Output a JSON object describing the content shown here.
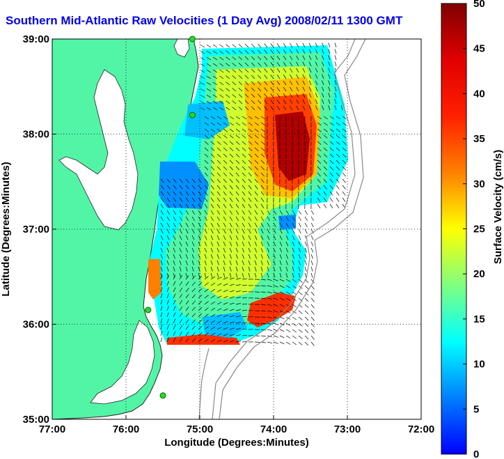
{
  "title": "Southern Mid-Atlantic Raw Velocities (1 Day Avg) 2008/02/11 1300 GMT",
  "chart_data": {
    "type": "heatmap",
    "title": "Southern Mid-Atlantic Raw Velocities (1 Day Avg) 2008/02/11 1300 GMT",
    "xlabel": "Longitude (Degrees:Minutes)",
    "ylabel": "Latitude (Degrees:Minutes)",
    "x_ticks": [
      "77:00",
      "76:00",
      "75:00",
      "74:00",
      "73:00",
      "72:00"
    ],
    "y_ticks": [
      "39:00",
      "38:00",
      "37:00",
      "36:00",
      "35:00"
    ],
    "xlim": [
      -77,
      -72
    ],
    "ylim": [
      35,
      39
    ],
    "grid": "dotted",
    "colorbar": {
      "label": "Surface Velocity (cm/s)",
      "range": [
        0,
        50
      ],
      "ticks": [
        "0",
        "5",
        "10",
        "15",
        "20",
        "25",
        "30",
        "35",
        "40",
        "45",
        "50"
      ],
      "colormap": "jet"
    },
    "stations": [
      {
        "lon": -75.1,
        "lat": 39.0
      },
      {
        "lon": -75.1,
        "lat": 38.2
      },
      {
        "lon": -75.7,
        "lat": 36.15
      },
      {
        "lon": -75.5,
        "lat": 35.25
      }
    ]
  },
  "colors": {
    "land": "#52f5a6",
    "title": "#0000ee",
    "grid": "#000000",
    "bathymetry": "#888888"
  }
}
